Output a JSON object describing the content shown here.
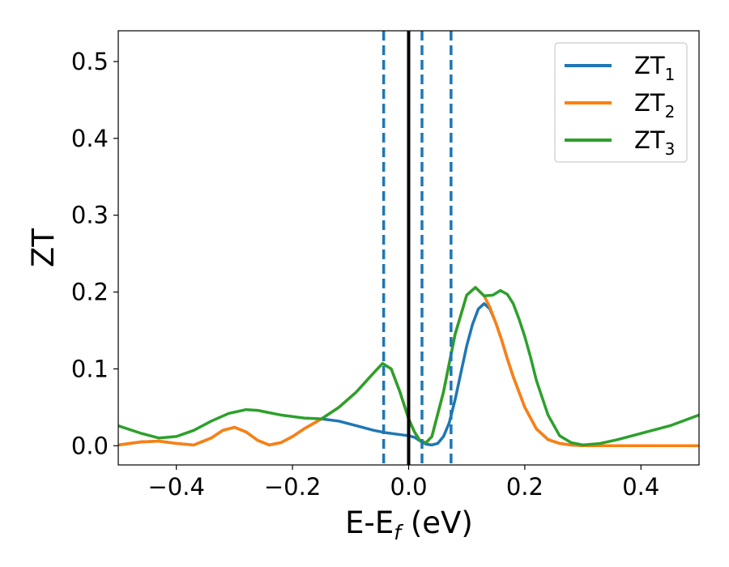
{
  "chart_data": {
    "type": "line",
    "xlabel": "E-E",
    "xlabel_sub": "f",
    "xlabel_unit": " (eV)",
    "ylabel": "ZT",
    "xlim": [
      -0.5,
      0.5
    ],
    "ylim": [
      -0.025,
      0.54
    ],
    "grid": false,
    "legend_position": "top-right",
    "x_ticks": [
      -0.4,
      -0.2,
      0.0,
      0.2,
      0.4
    ],
    "x_tick_labels": [
      "−0.4",
      "−0.2",
      "0.0",
      "0.2",
      "0.4"
    ],
    "y_ticks": [
      0.0,
      0.1,
      0.2,
      0.3,
      0.4,
      0.5
    ],
    "y_tick_labels": [
      "0.0",
      "0.1",
      "0.2",
      "0.3",
      "0.4",
      "0.5"
    ],
    "vertical_lines": [
      {
        "x": 0.0,
        "style": "solid",
        "color": "#000000"
      },
      {
        "x": -0.043,
        "style": "dashed",
        "color": "#1f77b4"
      },
      {
        "x": 0.023,
        "style": "dashed",
        "color": "#1f77b4"
      },
      {
        "x": 0.073,
        "style": "dashed",
        "color": "#1f77b4"
      }
    ],
    "series": [
      {
        "name": "ZT",
        "name_sub": "1",
        "color": "#1f77b4",
        "x": [
          -0.5,
          -0.46,
          -0.43,
          -0.4,
          -0.37,
          -0.34,
          -0.32,
          -0.3,
          -0.28,
          -0.26,
          -0.24,
          -0.22,
          -0.2,
          -0.18,
          -0.15,
          -0.12,
          -0.09,
          -0.06,
          -0.04,
          -0.02,
          0.0,
          0.01,
          0.02,
          0.03,
          0.04,
          0.05,
          0.06,
          0.07,
          0.08,
          0.09,
          0.1,
          0.11,
          0.12,
          0.13,
          0.14,
          0.15,
          0.16,
          0.17,
          0.18,
          0.2,
          0.22,
          0.24,
          0.26,
          0.28,
          0.3,
          0.35,
          0.4,
          0.45,
          0.5
        ],
        "y": [
          0.001,
          0.005,
          0.006,
          0.003,
          0.001,
          0.01,
          0.02,
          0.024,
          0.018,
          0.007,
          0.001,
          0.004,
          0.012,
          0.022,
          0.035,
          0.032,
          0.026,
          0.02,
          0.017,
          0.015,
          0.013,
          0.011,
          0.006,
          0.002,
          0.001,
          0.003,
          0.012,
          0.03,
          0.06,
          0.095,
          0.13,
          0.158,
          0.178,
          0.185,
          0.178,
          0.16,
          0.138,
          0.113,
          0.09,
          0.05,
          0.022,
          0.008,
          0.003,
          0.001,
          0.0,
          0.0,
          0.0,
          0.0,
          0.0
        ]
      },
      {
        "name": "ZT",
        "name_sub": "2",
        "color": "#ff7f0e",
        "x": [
          -0.5,
          -0.46,
          -0.43,
          -0.4,
          -0.37,
          -0.34,
          -0.32,
          -0.3,
          -0.28,
          -0.26,
          -0.24,
          -0.22,
          -0.2,
          -0.18,
          -0.15,
          -0.12,
          -0.09,
          -0.06,
          -0.045,
          -0.03,
          -0.015,
          0.0,
          0.01,
          0.02,
          0.03,
          0.04,
          0.06,
          0.08,
          0.1,
          0.115,
          0.13,
          0.14,
          0.15,
          0.16,
          0.17,
          0.18,
          0.2,
          0.22,
          0.24,
          0.26,
          0.28,
          0.3,
          0.35,
          0.4,
          0.45,
          0.5
        ],
        "y": [
          0.001,
          0.005,
          0.006,
          0.003,
          0.001,
          0.01,
          0.02,
          0.024,
          0.018,
          0.007,
          0.001,
          0.004,
          0.012,
          0.022,
          0.035,
          0.05,
          0.07,
          0.095,
          0.107,
          0.1,
          0.07,
          0.035,
          0.018,
          0.006,
          0.004,
          0.012,
          0.07,
          0.145,
          0.196,
          0.206,
          0.195,
          0.18,
          0.16,
          0.138,
          0.113,
          0.09,
          0.05,
          0.022,
          0.008,
          0.003,
          0.001,
          0.0,
          0.0,
          0.0,
          0.0,
          0.0
        ]
      },
      {
        "name": "ZT",
        "name_sub": "3",
        "color": "#2ca02c",
        "x": [
          -0.5,
          -0.46,
          -0.43,
          -0.4,
          -0.37,
          -0.34,
          -0.31,
          -0.28,
          -0.26,
          -0.24,
          -0.22,
          -0.2,
          -0.18,
          -0.15,
          -0.12,
          -0.09,
          -0.06,
          -0.045,
          -0.03,
          -0.015,
          0.0,
          0.01,
          0.02,
          0.03,
          0.04,
          0.06,
          0.08,
          0.1,
          0.115,
          0.13,
          0.145,
          0.158,
          0.17,
          0.18,
          0.19,
          0.2,
          0.21,
          0.22,
          0.24,
          0.26,
          0.28,
          0.3,
          0.33,
          0.36,
          0.4,
          0.45,
          0.5
        ],
        "y": [
          0.026,
          0.016,
          0.01,
          0.012,
          0.02,
          0.032,
          0.042,
          0.047,
          0.046,
          0.043,
          0.04,
          0.038,
          0.036,
          0.035,
          0.05,
          0.07,
          0.095,
          0.107,
          0.1,
          0.07,
          0.035,
          0.018,
          0.006,
          0.004,
          0.012,
          0.07,
          0.145,
          0.196,
          0.206,
          0.195,
          0.196,
          0.202,
          0.197,
          0.185,
          0.165,
          0.142,
          0.115,
          0.085,
          0.04,
          0.013,
          0.004,
          0.001,
          0.003,
          0.008,
          0.016,
          0.026,
          0.04
        ]
      }
    ]
  }
}
